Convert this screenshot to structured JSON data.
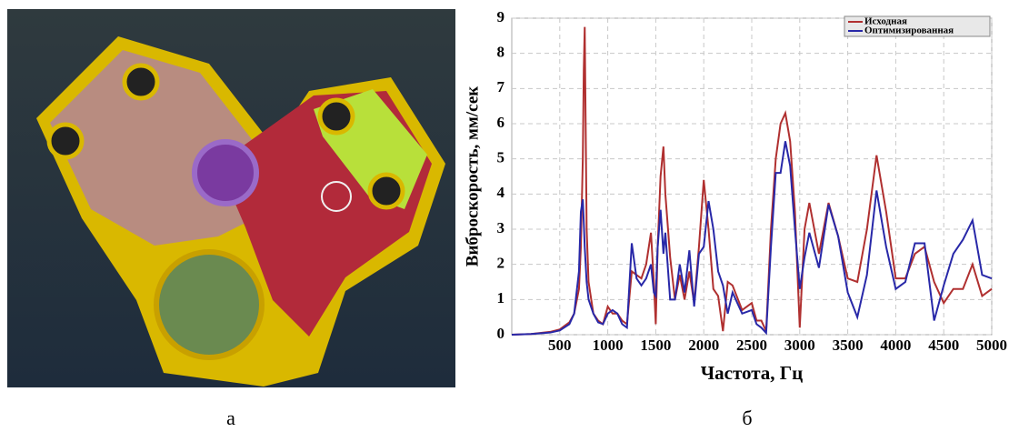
{
  "chart_data": {
    "type": "line",
    "x_label": "Частота, Гц",
    "y_label": "Виброскорость, мм/сек",
    "xlim": [
      0,
      5000
    ],
    "xticks": [
      500,
      1000,
      1500,
      2000,
      2500,
      3000,
      3500,
      4000,
      4500,
      5000
    ],
    "ylim": [
      0,
      9
    ],
    "yticks": [
      0,
      1,
      2,
      3,
      4,
      5,
      6,
      7,
      8,
      9
    ],
    "grid": true,
    "legend": "top-right",
    "x": [
      0,
      200,
      400,
      500,
      600,
      650,
      700,
      720,
      740,
      750,
      760,
      780,
      800,
      850,
      900,
      950,
      1000,
      1050,
      1100,
      1150,
      1200,
      1250,
      1300,
      1350,
      1400,
      1450,
      1480,
      1500,
      1520,
      1550,
      1580,
      1600,
      1650,
      1700,
      1750,
      1800,
      1850,
      1900,
      1950,
      2000,
      2050,
      2100,
      2150,
      2200,
      2250,
      2300,
      2400,
      2500,
      2550,
      2600,
      2650,
      2700,
      2750,
      2800,
      2850,
      2900,
      2950,
      3000,
      3050,
      3100,
      3200,
      3300,
      3400,
      3500,
      3600,
      3700,
      3800,
      3900,
      4000,
      4100,
      4200,
      4300,
      4400,
      4500,
      4600,
      4700,
      4800,
      4900,
      5000
    ],
    "series": [
      {
        "name": "Исходная",
        "color": "#b03030",
        "values": [
          0,
          0.02,
          0.08,
          0.15,
          0.35,
          0.6,
          1.3,
          2.5,
          5,
          7.5,
          8.75,
          3,
          1.5,
          0.6,
          0.4,
          0.3,
          0.8,
          0.6,
          0.6,
          0.4,
          0.3,
          1.8,
          1.7,
          1.6,
          2.0,
          2.9,
          1.5,
          0.3,
          2.5,
          4.5,
          5.35,
          4.0,
          2.2,
          1.0,
          1.7,
          1.0,
          1.8,
          0.9,
          2.5,
          4.4,
          3.0,
          1.3,
          1.1,
          0.1,
          1.5,
          1.4,
          0.7,
          0.9,
          0.4,
          0.4,
          0.1,
          3.0,
          5.0,
          6.0,
          6.3,
          5.5,
          3.5,
          0.2,
          3.0,
          3.75,
          2.3,
          3.75,
          2.8,
          1.6,
          1.5,
          3.0,
          5.1,
          3.5,
          1.6,
          1.6,
          2.3,
          2.5,
          1.5,
          0.9,
          1.3,
          1.3,
          2.0,
          1.1,
          1.3
        ]
      },
      {
        "name": "Оптимизированная",
        "color": "#2828a8",
        "values": [
          0,
          0.02,
          0.06,
          0.12,
          0.3,
          0.6,
          1.8,
          3.5,
          3.85,
          3.2,
          2.5,
          1.5,
          1.0,
          0.6,
          0.35,
          0.3,
          0.6,
          0.7,
          0.6,
          0.3,
          0.2,
          2.6,
          1.6,
          1.4,
          1.6,
          2.0,
          1.2,
          1.1,
          2.5,
          3.55,
          2.3,
          2.9,
          1.0,
          1.0,
          2.0,
          1.2,
          2.4,
          0.8,
          2.3,
          2.5,
          3.8,
          3.0,
          1.8,
          1.4,
          0.6,
          1.2,
          0.6,
          0.7,
          0.3,
          0.2,
          0.05,
          2.5,
          4.6,
          4.6,
          5.5,
          4.8,
          3.0,
          1.3,
          2.2,
          2.9,
          1.9,
          3.7,
          2.8,
          1.2,
          0.5,
          1.7,
          4.1,
          2.5,
          1.3,
          1.5,
          2.6,
          2.6,
          0.4,
          1.4,
          2.3,
          2.7,
          3.25,
          1.7,
          1.6
        ]
      }
    ]
  },
  "panel_labels": [
    "а",
    "б"
  ]
}
